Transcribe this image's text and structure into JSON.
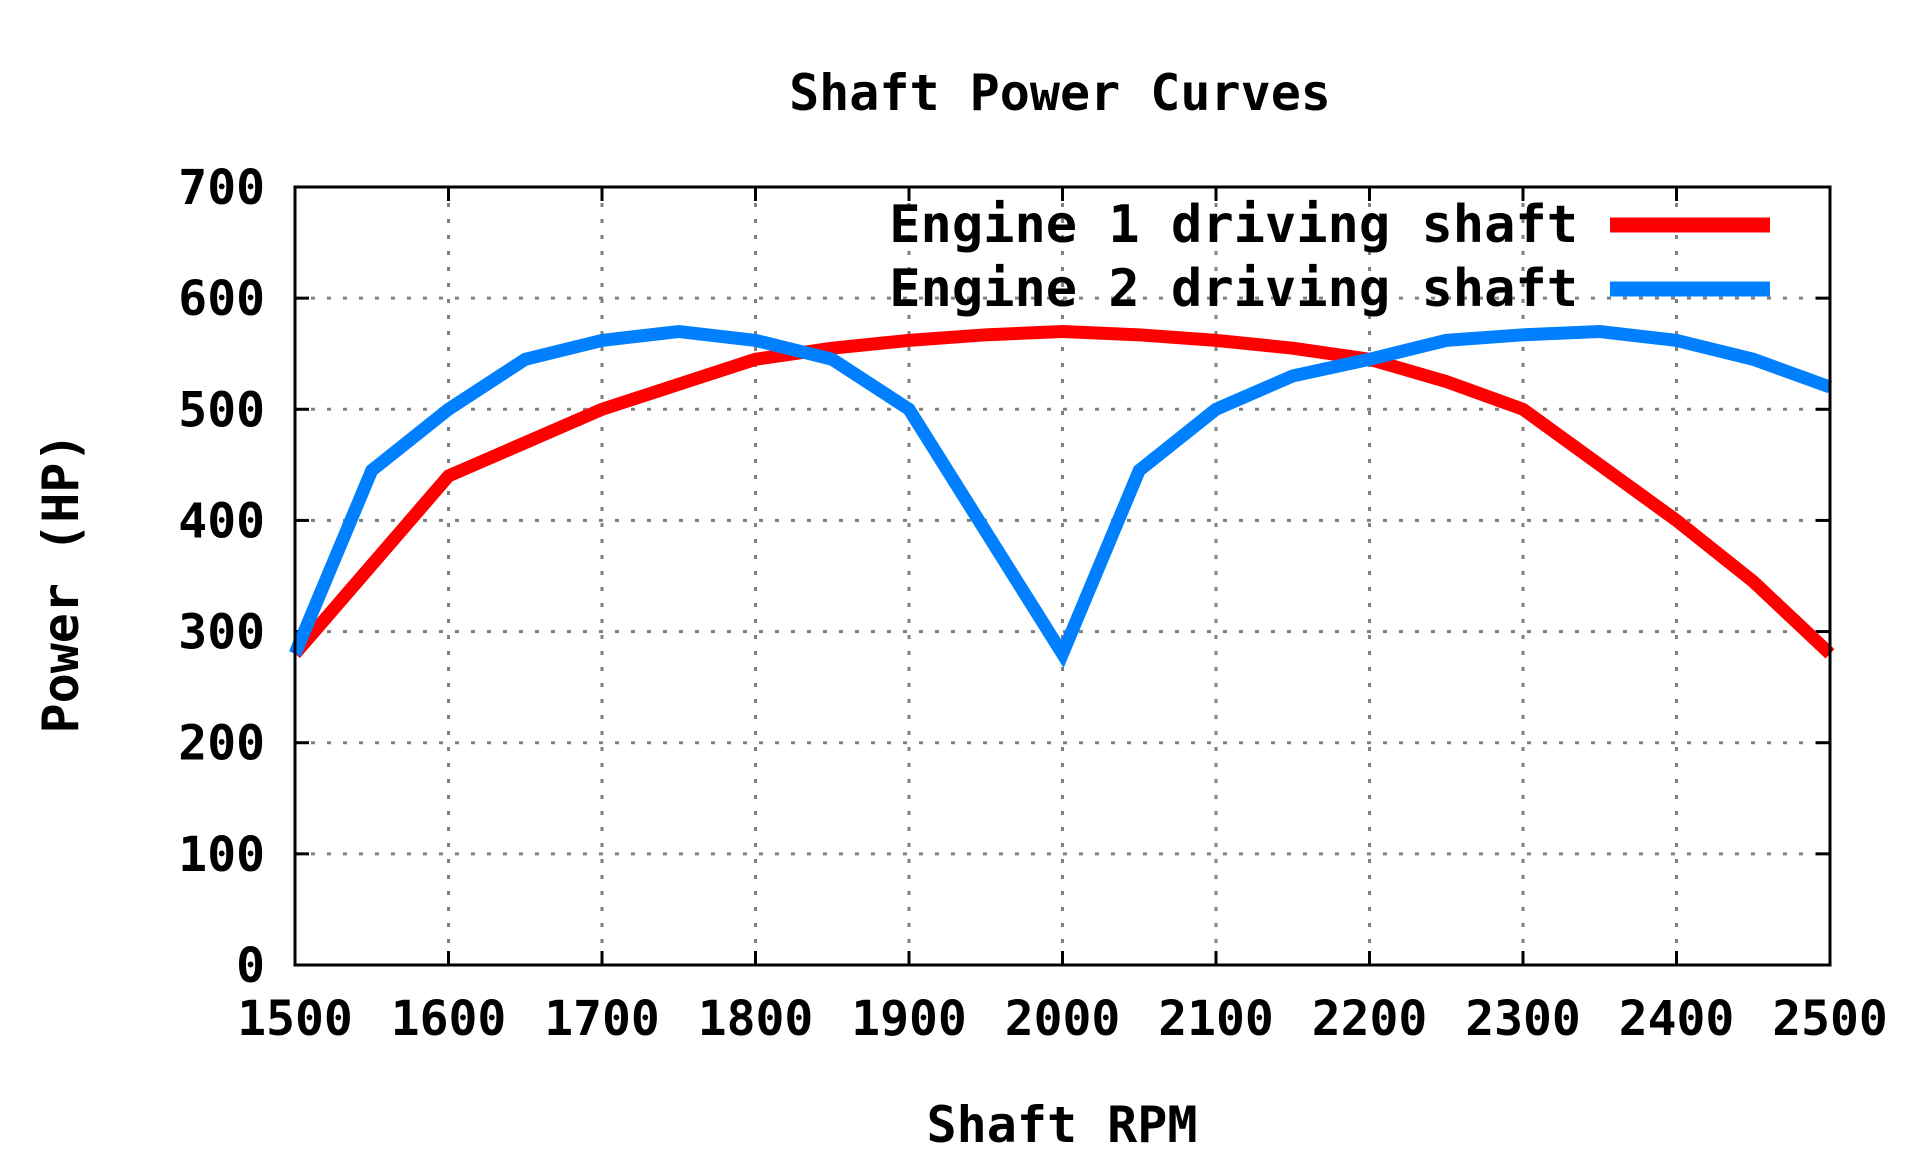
{
  "chart_data": {
    "type": "line",
    "title": "Shaft Power Curves",
    "xlabel": "Shaft RPM",
    "ylabel": "Power (HP)",
    "xlim": [
      1500,
      2500
    ],
    "ylim": [
      0,
      700
    ],
    "xticks": [
      1500,
      1600,
      1700,
      1800,
      1900,
      2000,
      2100,
      2200,
      2300,
      2400,
      2500
    ],
    "yticks": [
      0,
      100,
      200,
      300,
      400,
      500,
      600,
      700
    ],
    "grid": true,
    "legend_position": "top-right",
    "series": [
      {
        "name": "Engine 1 driving shaft",
        "color": "#ff0000",
        "x": [
          1500,
          1550,
          1600,
          1700,
          1800,
          1850,
          1900,
          1950,
          2000,
          2050,
          2100,
          2150,
          2200,
          2250,
          2300,
          2350,
          2400,
          2450,
          2500
        ],
        "y": [
          280,
          360,
          440,
          500,
          545,
          555,
          562,
          567,
          570,
          567,
          562,
          555,
          545,
          525,
          500,
          450,
          400,
          345,
          280
        ]
      },
      {
        "name": "Engine 2 driving shaft",
        "color": "#0080ff",
        "x": [
          1500,
          1550,
          1600,
          1650,
          1700,
          1750,
          1800,
          1850,
          1900,
          1950,
          2000,
          2050,
          2100,
          2150,
          2200,
          2250,
          2300,
          2350,
          2400,
          2450,
          2500
        ],
        "y": [
          280,
          445,
          500,
          545,
          562,
          570,
          562,
          545,
          500,
          390,
          280,
          445,
          500,
          530,
          545,
          562,
          567,
          570,
          562,
          545,
          520
        ]
      }
    ]
  }
}
